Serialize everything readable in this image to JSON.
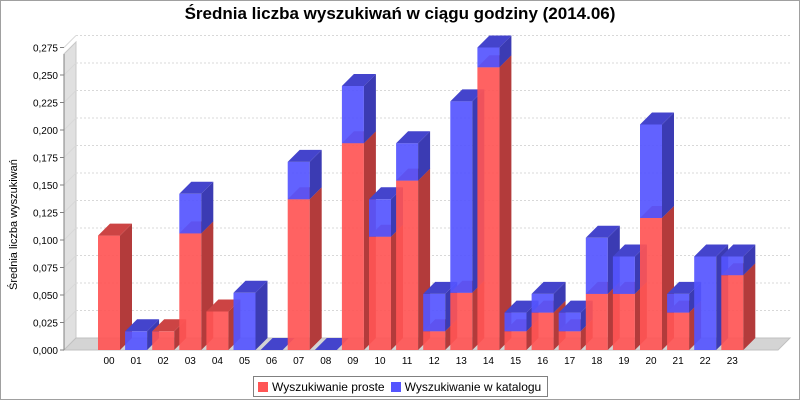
{
  "chart_data": {
    "type": "bar",
    "stacked": true,
    "style": "3d",
    "title": "Średnia liczba wyszukiwań w ciągu godziny (2014.06)",
    "ylabel": "Średnia liczba wyszukiwań",
    "xlabel": "",
    "ylim": [
      0,
      0.28
    ],
    "yticks": [
      "0,000",
      "0,025",
      "0,050",
      "0,075",
      "0,100",
      "0,125",
      "0,150",
      "0,175",
      "0,200",
      "0,225",
      "0,250",
      "0,275"
    ],
    "grid": true,
    "legend_position": "bottom",
    "categories": [
      "00",
      "01",
      "02",
      "03",
      "04",
      "05",
      "06",
      "07",
      "08",
      "09",
      "10",
      "11",
      "12",
      "13",
      "14",
      "15",
      "16",
      "17",
      "18",
      "19",
      "20",
      "21",
      "22",
      "23"
    ],
    "series": [
      {
        "name": "Wyszukiwanie proste",
        "color": "#ff5555",
        "values": [
          0.104,
          0.0,
          0.017,
          0.106,
          0.035,
          0.0,
          0.0,
          0.137,
          0.0,
          0.188,
          0.103,
          0.154,
          0.017,
          0.052,
          0.257,
          0.017,
          0.034,
          0.017,
          0.051,
          0.051,
          0.12,
          0.034,
          0.0,
          0.068
        ]
      },
      {
        "name": "Wyszukiwanie w katalogu",
        "color": "#5555ff",
        "values": [
          0.0,
          0.017,
          0.0,
          0.036,
          0.0,
          0.052,
          0.0,
          0.034,
          0.0,
          0.052,
          0.034,
          0.034,
          0.034,
          0.174,
          0.018,
          0.017,
          0.017,
          0.017,
          0.051,
          0.034,
          0.085,
          0.017,
          0.085,
          0.017
        ]
      }
    ]
  }
}
